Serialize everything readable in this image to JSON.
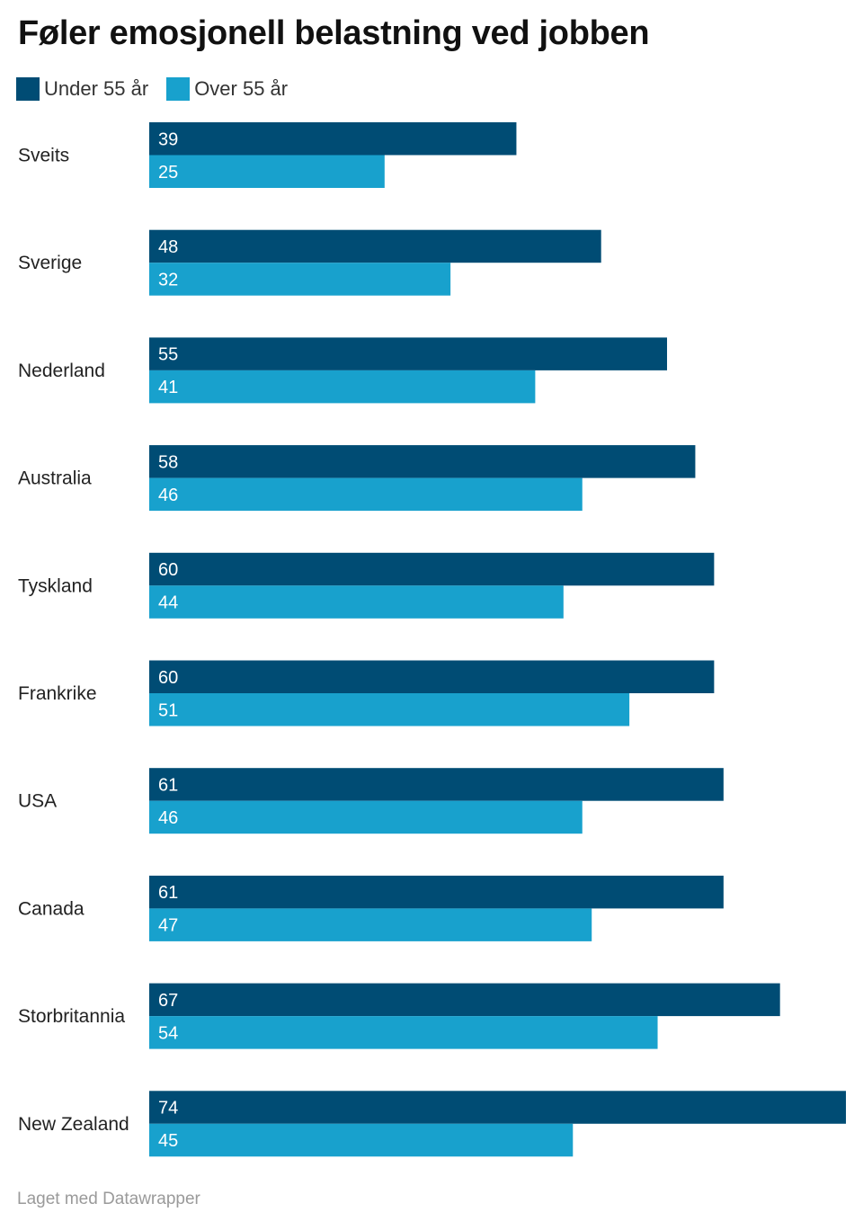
{
  "title": "Føler emosjonell belastning ved jobben",
  "footer": "Laget med Datawrapper",
  "colors": {
    "under": "#004c74",
    "over": "#18a1cd",
    "value_text": "#ffffff"
  },
  "chart_data": {
    "type": "bar",
    "orientation": "horizontal",
    "categories": [
      "Sveits",
      "Sverige",
      "Nederland",
      "Australia",
      "Tyskland",
      "Frankrike",
      "USA",
      "Canada",
      "Storbritannia",
      "New Zealand"
    ],
    "series": [
      {
        "name": "Under 55 år",
        "color": "#004c74",
        "values": [
          39,
          48,
          55,
          58,
          60,
          60,
          61,
          61,
          67,
          74
        ]
      },
      {
        "name": "Over 55 år",
        "color": "#18a1cd",
        "values": [
          25,
          32,
          41,
          46,
          44,
          51,
          46,
          47,
          54,
          45
        ]
      }
    ],
    "title": "Føler emosjonell belastning ved jobben",
    "xlim": [
      0,
      74
    ],
    "legend": "top-left",
    "grid": false,
    "data_labels": "inside-start"
  }
}
